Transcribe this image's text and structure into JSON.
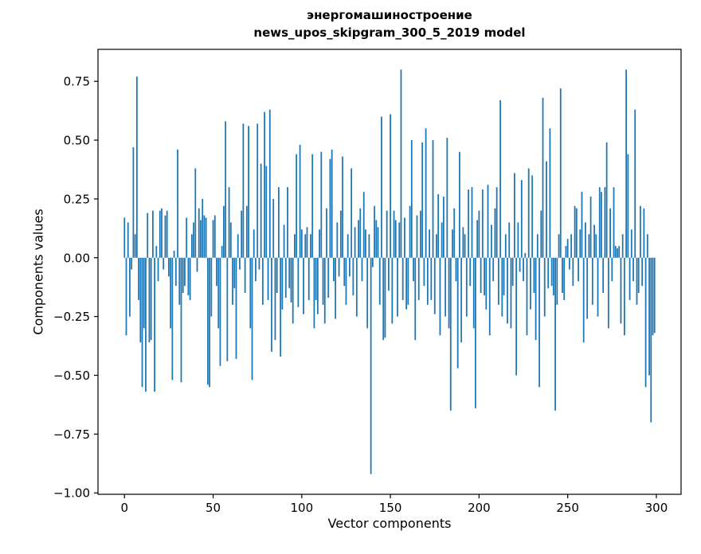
{
  "title_line1": "энергомашиностроение",
  "title_line2": "news_upos_skipgram_300_5_2019 model",
  "chart_data": {
    "type": "bar",
    "title": "энергомашиностроение\nnews_upos_skipgram_300_5_2019 model",
    "xlabel": "Vector components",
    "ylabel": "Components values",
    "xlim": [
      -14.95,
      313.95
    ],
    "ylim": [
      -1.006,
      0.886
    ],
    "x_ticks": [
      0,
      50,
      100,
      150,
      200,
      250,
      300
    ],
    "y_ticks": [
      -1.0,
      -0.75,
      -0.5,
      -0.25,
      0.0,
      0.25,
      0.5,
      0.75
    ],
    "bar_color": "#1f77b4",
    "grid": false,
    "legend": null,
    "values": [
      0.17,
      -0.33,
      0.15,
      -0.25,
      -0.05,
      0.47,
      0.1,
      0.77,
      -0.18,
      -0.36,
      -0.55,
      -0.3,
      -0.57,
      0.19,
      -0.36,
      -0.35,
      0.2,
      -0.57,
      0.05,
      -0.1,
      0.2,
      0.21,
      -0.05,
      0.18,
      0.2,
      -0.08,
      -0.3,
      -0.52,
      0.03,
      -0.12,
      0.46,
      -0.2,
      -0.53,
      -0.15,
      -0.12,
      0.17,
      -0.16,
      -0.18,
      0.1,
      0.15,
      0.38,
      -0.06,
      0.21,
      0.16,
      0.25,
      0.18,
      0.17,
      -0.54,
      -0.55,
      -0.25,
      0.16,
      0.18,
      -0.12,
      -0.3,
      -0.46,
      0.05,
      0.22,
      0.58,
      -0.44,
      0.3,
      0.15,
      -0.2,
      -0.13,
      -0.43,
      0.1,
      -0.05,
      0.2,
      0.57,
      -0.15,
      0.22,
      0.56,
      -0.3,
      -0.52,
      0.12,
      -0.1,
      0.57,
      -0.05,
      0.4,
      -0.2,
      0.62,
      0.39,
      -0.18,
      0.63,
      -0.4,
      0.25,
      -0.35,
      -0.15,
      0.3,
      -0.42,
      -0.22,
      0.14,
      -0.17,
      0.3,
      -0.13,
      -0.19,
      -0.28,
      0.1,
      0.44,
      -0.21,
      0.48,
      0.12,
      -0.24,
      0.1,
      0.13,
      -0.18,
      0.1,
      0.44,
      -0.3,
      -0.18,
      -0.24,
      0.12,
      0.45,
      -0.2,
      -0.28,
      0.21,
      -0.17,
      0.42,
      0.46,
      -0.1,
      -0.26,
      0.15,
      -0.08,
      0.2,
      0.43,
      -0.12,
      -0.2,
      0.1,
      -0.08,
      0.38,
      -0.16,
      0.13,
      -0.25,
      0.16,
      0.21,
      -0.1,
      0.28,
      0.12,
      -0.3,
      0.1,
      -0.92,
      -0.04,
      0.22,
      0.16,
      0.13,
      -0.2,
      0.6,
      -0.35,
      -0.34,
      0.2,
      -0.14,
      0.61,
      -0.28,
      0.2,
      0.16,
      -0.25,
      0.15,
      0.8,
      -0.18,
      0.17,
      -0.22,
      -0.2,
      0.22,
      0.5,
      -0.1,
      -0.35,
      0.18,
      -0.18,
      0.2,
      0.49,
      -0.12,
      0.55,
      -0.2,
      0.12,
      -0.18,
      0.5,
      -0.24,
      0.1,
      0.27,
      -0.33,
      0.15,
      0.26,
      -0.25,
      0.51,
      -0.3,
      -0.65,
      0.12,
      0.21,
      -0.1,
      -0.47,
      0.45,
      -0.36,
      0.13,
      0.1,
      -0.25,
      0.29,
      -0.12,
      0.3,
      -0.3,
      -0.64,
      0.16,
      0.2,
      -0.15,
      0.29,
      -0.16,
      -0.22,
      0.31,
      -0.33,
      0.14,
      -0.1,
      0.21,
      0.3,
      -0.2,
      0.67,
      -0.25,
      -0.16,
      0.1,
      -0.28,
      0.15,
      -0.3,
      -0.12,
      0.36,
      -0.5,
      0.15,
      -0.06,
      0.33,
      -0.1,
      0.02,
      -0.33,
      0.38,
      -0.22,
      0.35,
      -0.15,
      -0.35,
      0.1,
      -0.55,
      0.2,
      0.68,
      -0.25,
      0.41,
      -0.13,
      0.55,
      -0.12,
      -0.16,
      -0.65,
      -0.2,
      0.1,
      0.72,
      -0.15,
      -0.18,
      0.05,
      0.08,
      -0.05,
      0.1,
      -0.12,
      0.22,
      0.21,
      -0.1,
      0.12,
      0.28,
      -0.36,
      0.15,
      -0.26,
      0.1,
      0.26,
      -0.2,
      0.14,
      0.1,
      -0.25,
      0.3,
      0.28,
      -0.15,
      0.3,
      0.49,
      -0.3,
      0.21,
      -0.1,
      0.3,
      0.05,
      0.04,
      0.05,
      -0.28,
      0.1,
      -0.33,
      0.8,
      0.44,
      -0.18,
      0.12,
      -0.1,
      0.63,
      -0.2,
      -0.15,
      0.22,
      -0.12,
      0.21,
      -0.55,
      0.1,
      -0.5,
      -0.7,
      -0.33,
      -0.32
    ]
  }
}
